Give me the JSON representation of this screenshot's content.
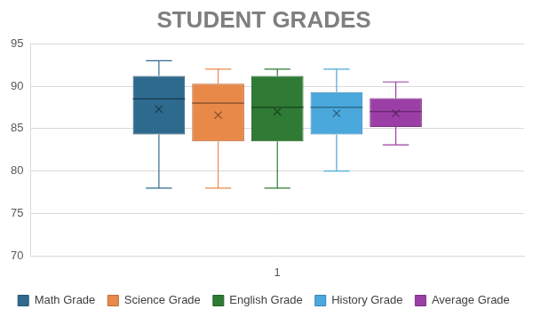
{
  "chart_data": {
    "type": "box",
    "title": "STUDENT GRADES",
    "categories": [
      "1"
    ],
    "ylim": [
      70,
      95
    ],
    "yticks": [
      70,
      75,
      80,
      85,
      90,
      95
    ],
    "grid": true,
    "legend": "bottom",
    "series": [
      {
        "name": "Math Grade",
        "color": "#2e6a8e",
        "min": [
          78
        ],
        "q1": [
          84.3
        ],
        "median": [
          88.5
        ],
        "q3": [
          91.2
        ],
        "max": [
          93
        ],
        "mean": [
          87.3
        ]
      },
      {
        "name": "Science Grade",
        "color": "#e8894a",
        "min": [
          78
        ],
        "q1": [
          83.5
        ],
        "median": [
          88
        ],
        "q3": [
          90.3
        ],
        "max": [
          92
        ],
        "mean": [
          86.6
        ]
      },
      {
        "name": "English Grade",
        "color": "#2f7a34",
        "min": [
          78
        ],
        "q1": [
          83.5
        ],
        "median": [
          87.5
        ],
        "q3": [
          91.2
        ],
        "max": [
          92
        ],
        "mean": [
          87
        ]
      },
      {
        "name": "History Grade",
        "color": "#4aa8dc",
        "min": [
          80
        ],
        "q1": [
          84.3
        ],
        "median": [
          87.5
        ],
        "q3": [
          89.3
        ],
        "max": [
          92
        ],
        "mean": [
          86.8
        ]
      },
      {
        "name": "Average Grade",
        "color": "#9b3fa6",
        "min": [
          83.1
        ],
        "q1": [
          85.2
        ],
        "median": [
          87
        ],
        "q3": [
          88.6
        ],
        "max": [
          90.5
        ],
        "mean": [
          86.8
        ]
      }
    ]
  }
}
